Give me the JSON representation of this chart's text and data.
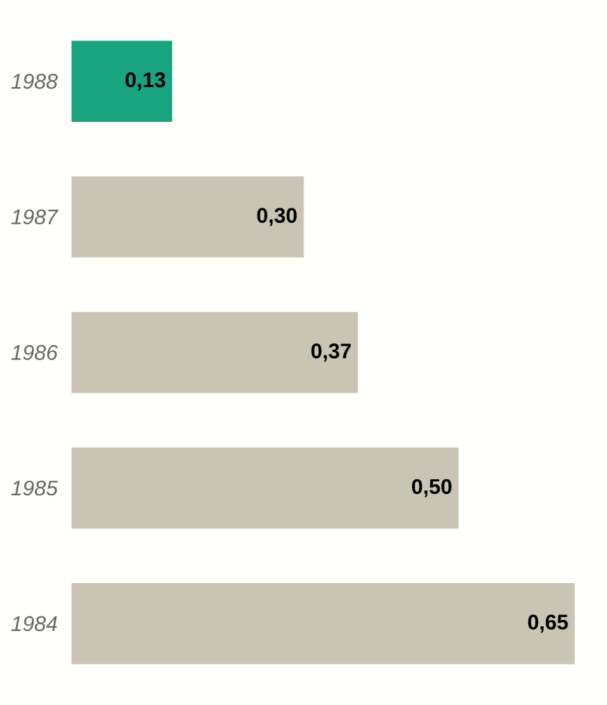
{
  "chart_data": {
    "type": "bar",
    "orientation": "horizontal",
    "categories": [
      "1988",
      "1987",
      "1986",
      "1985",
      "1984"
    ],
    "values": [
      0.13,
      0.3,
      0.37,
      0.5,
      0.65
    ],
    "colors": [
      "#1aa37f",
      "#c9c4b3",
      "#c9c4b3",
      "#c9c4b3",
      "#c9c4b3"
    ],
    "value_labels": [
      "0,13",
      "0,30",
      "0,37",
      "0,50",
      "0,65"
    ],
    "tick_labels": "y"
  }
}
